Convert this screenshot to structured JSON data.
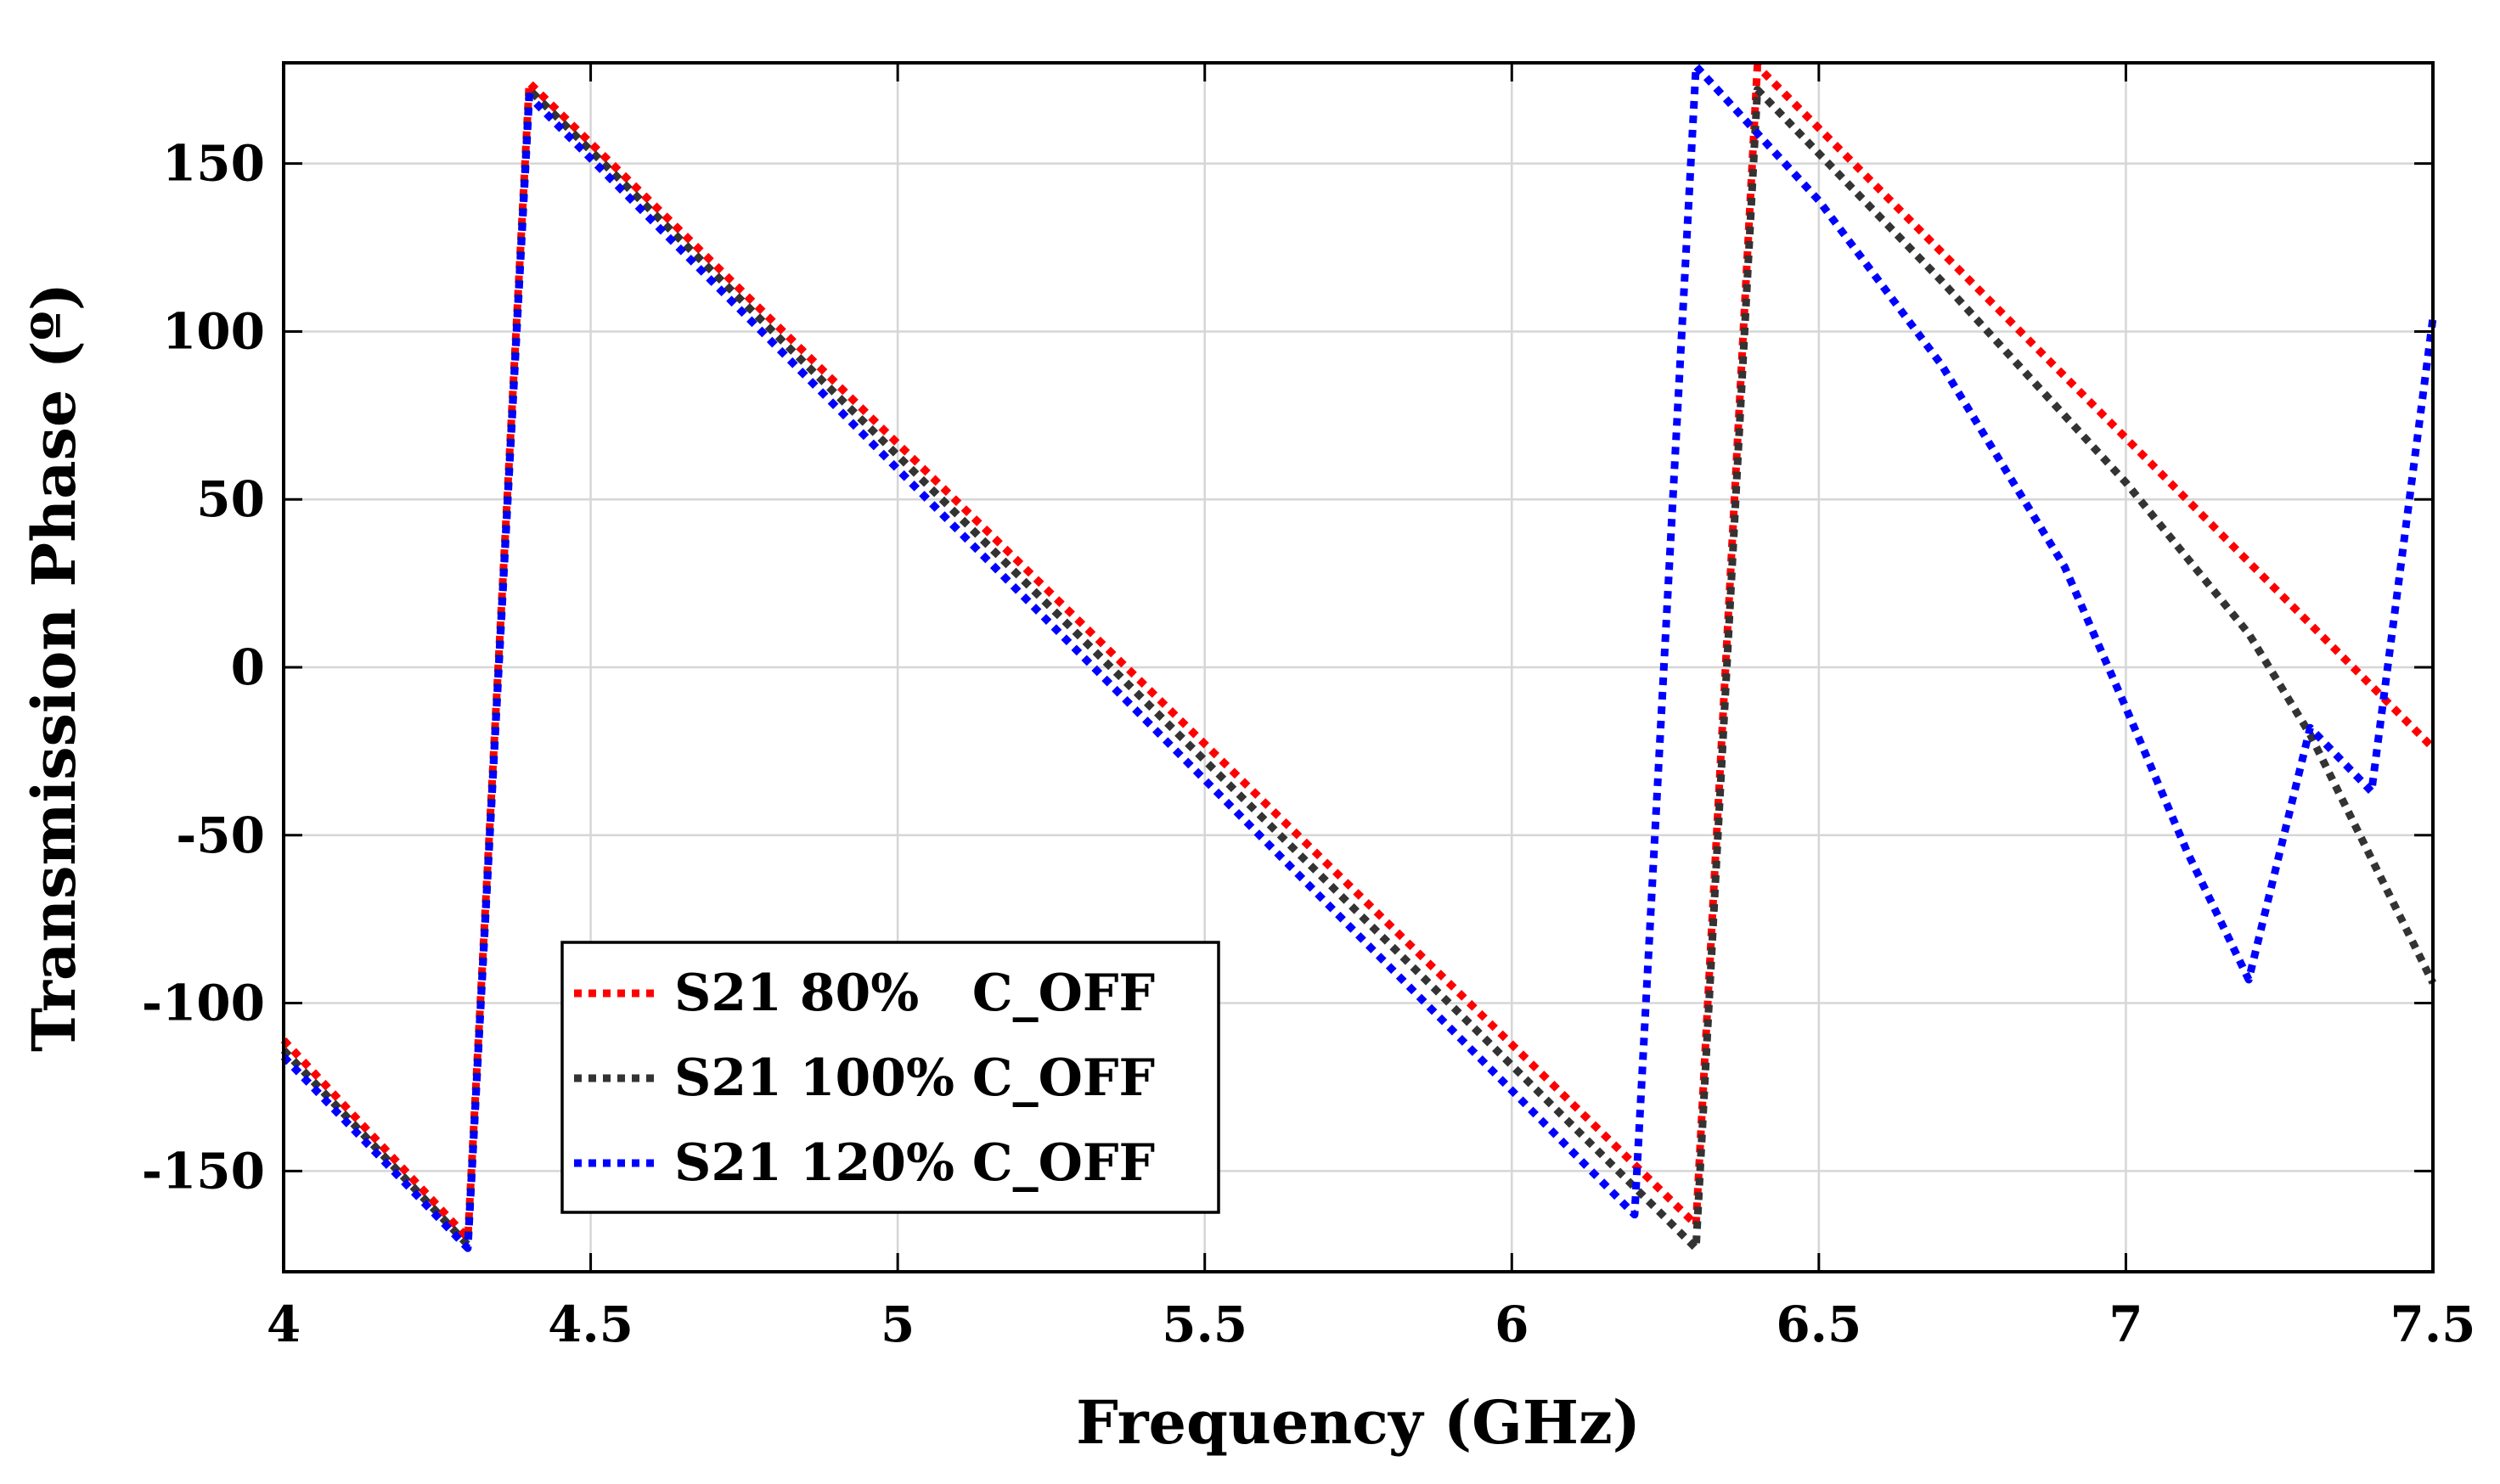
{
  "chart_data": {
    "type": "line",
    "title": "",
    "xlabel": "Frequency (GHz)",
    "ylabel": "Transmission Phase (º)",
    "xlim": [
      4,
      7.5
    ],
    "ylim": [
      -180,
      180
    ],
    "xticks": [
      4,
      4.5,
      5,
      5.5,
      6,
      6.5,
      7,
      7.5
    ],
    "xtick_labels": [
      "4",
      "4.5",
      "5",
      "5.5",
      "6",
      "6.5",
      "7",
      "7.5"
    ],
    "yticks": [
      -150,
      -100,
      -50,
      0,
      50,
      100,
      150
    ],
    "ytick_labels": [
      "-150",
      "-100",
      "-50",
      "0",
      "50",
      "100",
      "150"
    ],
    "grid": true,
    "legend_position": "bottom-left",
    "series": [
      {
        "name": "S21 80%   C_OFF",
        "color": "#ff0000",
        "x": [
          4.0,
          4.3,
          4.4,
          6.3,
          6.4,
          7.5
        ],
        "y": [
          -111,
          -170,
          174,
          -166,
          179,
          -24
        ]
      },
      {
        "name": "S21 100% C_OFF",
        "color": "#333333",
        "x": [
          4.0,
          4.3,
          4.4,
          6.3,
          6.4,
          6.7,
          7.0,
          7.2,
          7.3,
          7.5
        ],
        "y": [
          -114,
          -172,
          172,
          -173,
          172,
          115,
          55,
          10,
          -20,
          -94
        ]
      },
      {
        "name": "S21 120% C_OFF",
        "color": "#0000ff",
        "x": [
          4.0,
          4.3,
          4.4,
          6.2,
          6.3,
          6.5,
          6.7,
          6.9,
          7.0,
          7.1,
          7.2,
          7.3,
          7.4,
          7.5
        ],
        "y": [
          -116,
          -173,
          170,
          -163,
          179,
          139,
          90,
          30,
          -12,
          -55,
          -93,
          -18,
          -37,
          104
        ]
      }
    ]
  }
}
